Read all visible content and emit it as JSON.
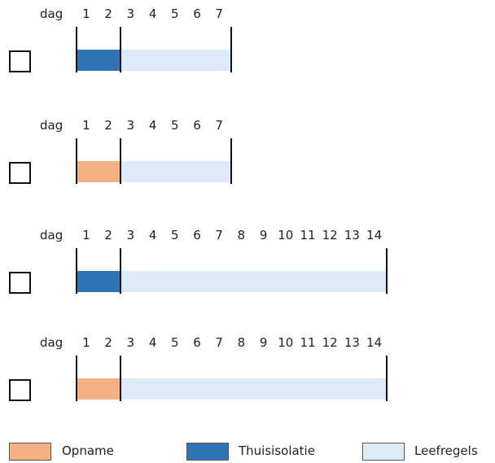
{
  "colors": {
    "opname": "#f4b183",
    "thuisisolatie": "#2e74b5",
    "leefregels": "#deeaf6"
  },
  "dag_label": "dag",
  "options": [
    {
      "first_period": "thuisisolatie",
      "first_days": 2,
      "total_days": 7,
      "day_labels": [
        "1",
        "2",
        "3",
        "4",
        "5",
        "6",
        "7"
      ]
    },
    {
      "first_period": "opname",
      "first_days": 2,
      "total_days": 7,
      "day_labels": [
        "1",
        "2",
        "3",
        "4",
        "5",
        "6",
        "7"
      ]
    },
    {
      "first_period": "thuisisolatie",
      "first_days": 2,
      "total_days": 14,
      "day_labels": [
        "1",
        "2",
        "3",
        "4",
        "5",
        "6",
        "7",
        "8",
        "9",
        "10",
        "11",
        "12",
        "13",
        "14"
      ]
    },
    {
      "first_period": "opname",
      "first_days": 2,
      "total_days": 14,
      "day_labels": [
        "1",
        "2",
        "3",
        "4",
        "5",
        "6",
        "7",
        "8",
        "9",
        "10",
        "11",
        "12",
        "13",
        "14"
      ]
    }
  ],
  "legend": {
    "opname": "Opname",
    "thuisisolatie": "Thuisisolatie",
    "leefregels": "Leefregels"
  }
}
